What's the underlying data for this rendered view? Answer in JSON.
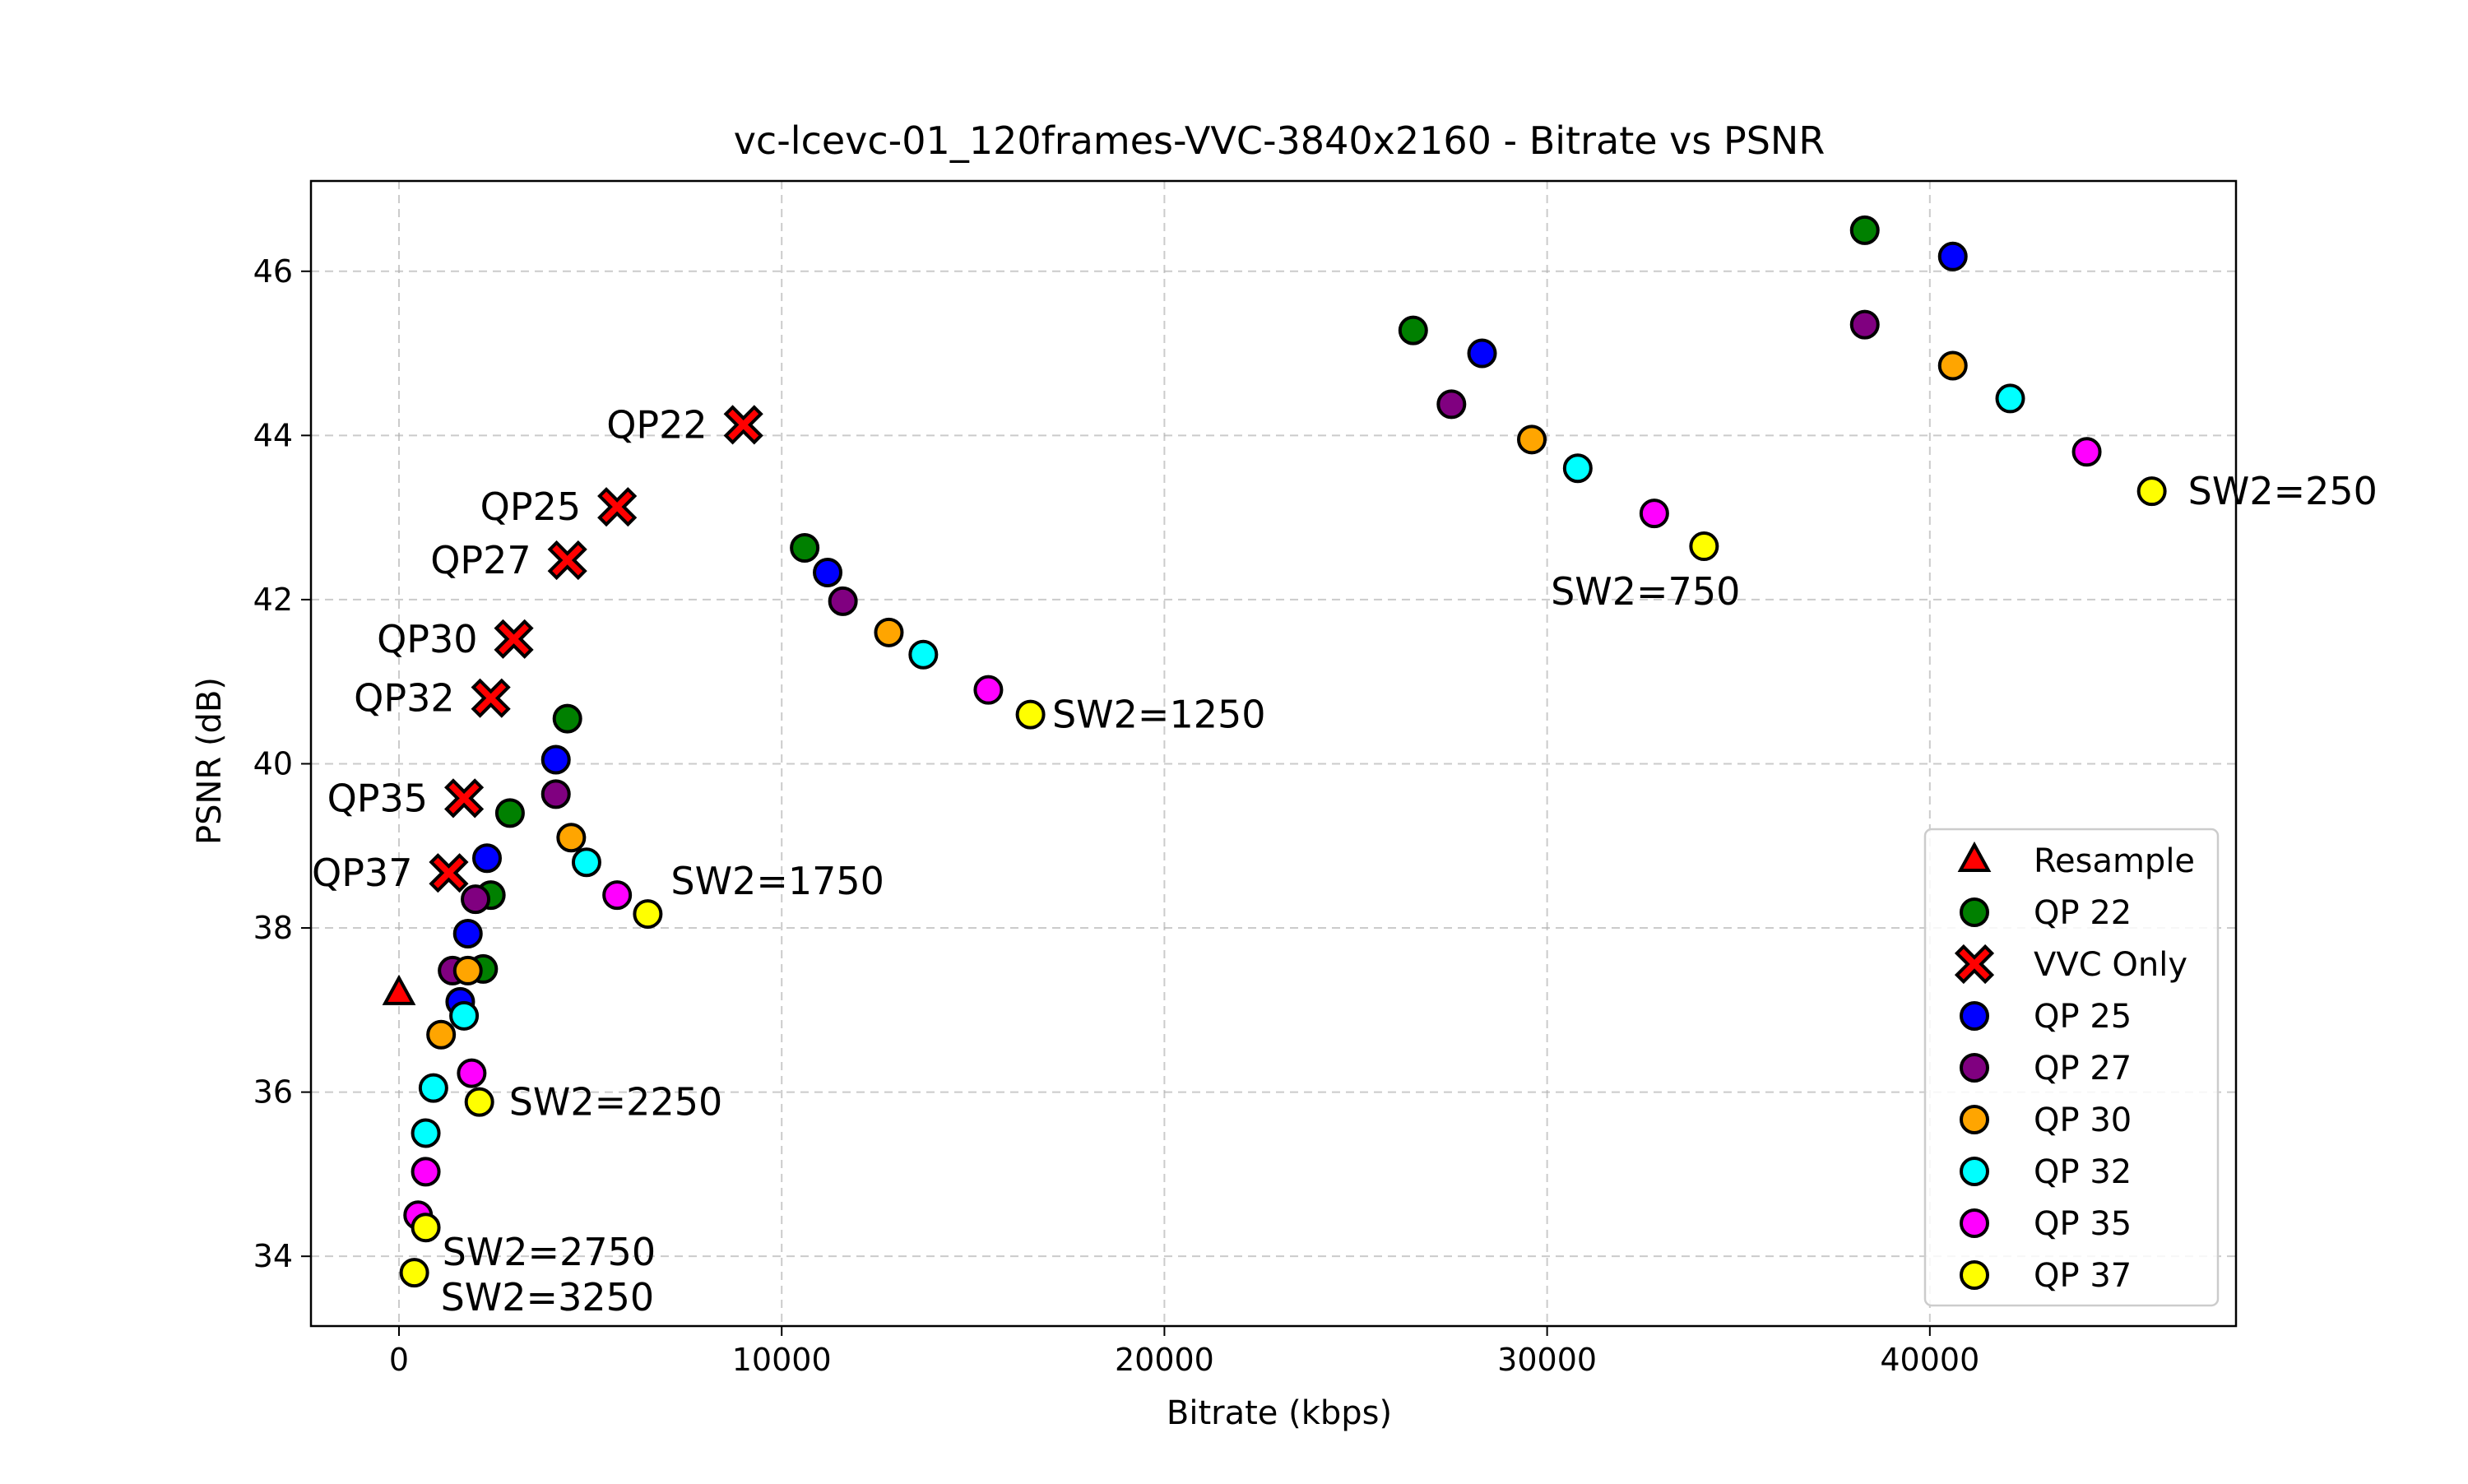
{
  "chart_data": {
    "type": "scatter",
    "title": "vc-lcevc-01_120frames-VVC-3840x2160 - Bitrate vs PSNR",
    "xlabel": "Bitrate (kbps)",
    "ylabel": "PSNR (dB)",
    "xlim": [
      -2300,
      48000
    ],
    "ylim": [
      33.15,
      47.1
    ],
    "xticks": [
      0,
      10000,
      20000,
      30000,
      40000
    ],
    "yticks": [
      34,
      36,
      38,
      40,
      42,
      44,
      46
    ],
    "grid": true,
    "legend_position": "lower right",
    "series": [
      {
        "name": "Resample",
        "marker": "triangle",
        "color": "#ff0000",
        "points": [
          [
            0,
            37.2
          ]
        ]
      },
      {
        "name": "QP 22",
        "marker": "circle",
        "color": "#008000",
        "points": [
          [
            4400,
            40.55
          ],
          [
            2900,
            39.4
          ],
          [
            2400,
            38.4
          ],
          [
            2200,
            37.5
          ],
          [
            10600,
            42.63
          ],
          [
            26500,
            45.28
          ],
          [
            38300,
            46.5
          ]
        ]
      },
      {
        "name": "VVC Only",
        "marker": "x",
        "color": "#ff0000",
        "points": [
          [
            9000,
            44.13
          ],
          [
            5700,
            43.13
          ],
          [
            4400,
            42.48
          ],
          [
            3000,
            41.52
          ],
          [
            2400,
            40.8
          ],
          [
            1700,
            39.58
          ],
          [
            1300,
            38.67
          ]
        ]
      },
      {
        "name": "QP 25",
        "marker": "circle",
        "color": "#0000ff",
        "points": [
          [
            4100,
            40.05
          ],
          [
            2300,
            38.85
          ],
          [
            1800,
            37.93
          ],
          [
            1600,
            37.1
          ],
          [
            11200,
            42.33
          ],
          [
            28300,
            45.0
          ],
          [
            40600,
            46.18
          ]
        ]
      },
      {
        "name": "QP 27",
        "marker": "circle",
        "color": "#800080",
        "points": [
          [
            4100,
            39.63
          ],
          [
            2000,
            38.35
          ],
          [
            1400,
            37.48
          ],
          [
            11600,
            41.98
          ],
          [
            27500,
            44.38
          ],
          [
            38300,
            45.35
          ]
        ]
      },
      {
        "name": "QP 30",
        "marker": "circle",
        "color": "#ffa500",
        "points": [
          [
            4500,
            39.1
          ],
          [
            1800,
            37.48
          ],
          [
            1100,
            36.7
          ],
          [
            12800,
            41.6
          ],
          [
            29600,
            43.95
          ],
          [
            40600,
            44.85
          ]
        ]
      },
      {
        "name": "QP 32",
        "marker": "circle",
        "color": "#00ffff",
        "points": [
          [
            4900,
            38.8
          ],
          [
            1700,
            36.93
          ],
          [
            900,
            36.05
          ],
          [
            700,
            35.5
          ],
          [
            13700,
            41.33
          ],
          [
            30800,
            43.6
          ],
          [
            42100,
            44.45
          ]
        ]
      },
      {
        "name": "QP 35",
        "marker": "circle",
        "color": "#ff00ff",
        "points": [
          [
            5700,
            38.4
          ],
          [
            1900,
            36.23
          ],
          [
            700,
            35.03
          ],
          [
            500,
            34.5
          ],
          [
            15400,
            40.9
          ],
          [
            32800,
            43.05
          ],
          [
            44100,
            43.8
          ]
        ]
      },
      {
        "name": "QP 37",
        "marker": "circle",
        "color": "#ffff00",
        "points": [
          [
            6500,
            38.17
          ],
          [
            2100,
            35.88
          ],
          [
            700,
            34.35
          ],
          [
            400,
            33.8
          ],
          [
            16500,
            40.6
          ],
          [
            34100,
            42.65
          ],
          [
            45800,
            43.32
          ]
        ]
      }
    ],
    "annotations": [
      {
        "text": "QP22",
        "x": 9000,
        "y": 44.13,
        "anchor": "end",
        "dx": -0.55
      },
      {
        "text": "QP25",
        "x": 5700,
        "y": 43.13,
        "anchor": "end",
        "dx": -0.55
      },
      {
        "text": "QP27",
        "x": 4400,
        "y": 42.48,
        "anchor": "end",
        "dx": -0.55
      },
      {
        "text": "QP30",
        "x": 3000,
        "y": 41.52,
        "anchor": "end",
        "dx": -0.55
      },
      {
        "text": "QP32",
        "x": 2400,
        "y": 40.8,
        "anchor": "end",
        "dx": -0.55
      },
      {
        "text": "QP35",
        "x": 1700,
        "y": 39.58,
        "anchor": "end",
        "dx": -0.55
      },
      {
        "text": "QP37",
        "x": 1300,
        "y": 38.67,
        "anchor": "end",
        "dx": -0.55
      },
      {
        "text": "SW2=250",
        "x": 45800,
        "y": 43.32,
        "anchor": "start",
        "dx": 0.55
      },
      {
        "text": "SW2=750",
        "x": 34100,
        "y": 42.65,
        "anchor": "end",
        "dx": 0.55,
        "dy": -0.55
      },
      {
        "text": "SW2=1250",
        "x": 16500,
        "y": 40.6,
        "anchor": "start",
        "dx": 0.33
      },
      {
        "text": "SW2=1750",
        "x": 6500,
        "y": 38.17,
        "anchor": "start",
        "dx": 0.35,
        "dy": 0.4
      },
      {
        "text": "SW2=2250",
        "x": 2100,
        "y": 35.88,
        "anchor": "start",
        "dx": 0.45
      },
      {
        "text": "SW2=2750",
        "x": 700,
        "y": 34.35,
        "anchor": "start",
        "dx": 0.25,
        "dy": -0.3
      },
      {
        "text": "SW2=3250",
        "x": 400,
        "y": 33.8,
        "anchor": "start",
        "dx": 0.4,
        "dy": -0.3
      }
    ]
  }
}
